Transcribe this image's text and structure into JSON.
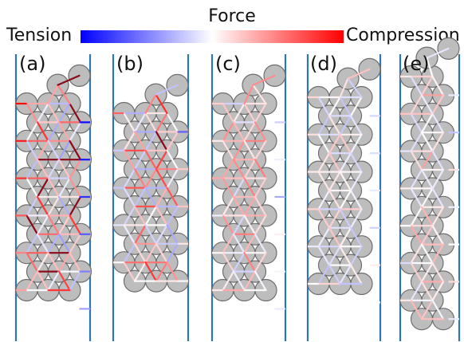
{
  "colorbar": {
    "title": "Force",
    "left_label": "Tension",
    "right_label": "Compression",
    "low_color": "#0000ff",
    "mid_color": "#ffffff",
    "high_color": "#ff0000"
  },
  "colors": {
    "wall": "#2e75b6",
    "particle_fill": "#bdbdbd",
    "particle_edge": "#6e6e6e",
    "strong_tension": "#0a2a80",
    "strong_compression": "#8b0a1a"
  },
  "panels": [
    {
      "label": "(a)",
      "intensity": 1.0
    },
    {
      "label": "(b)",
      "intensity": 0.75
    },
    {
      "label": "(c)",
      "intensity": 0.45
    },
    {
      "label": "(d)",
      "intensity": 0.2
    },
    {
      "label": "(e)",
      "intensity": 0.35
    }
  ]
}
